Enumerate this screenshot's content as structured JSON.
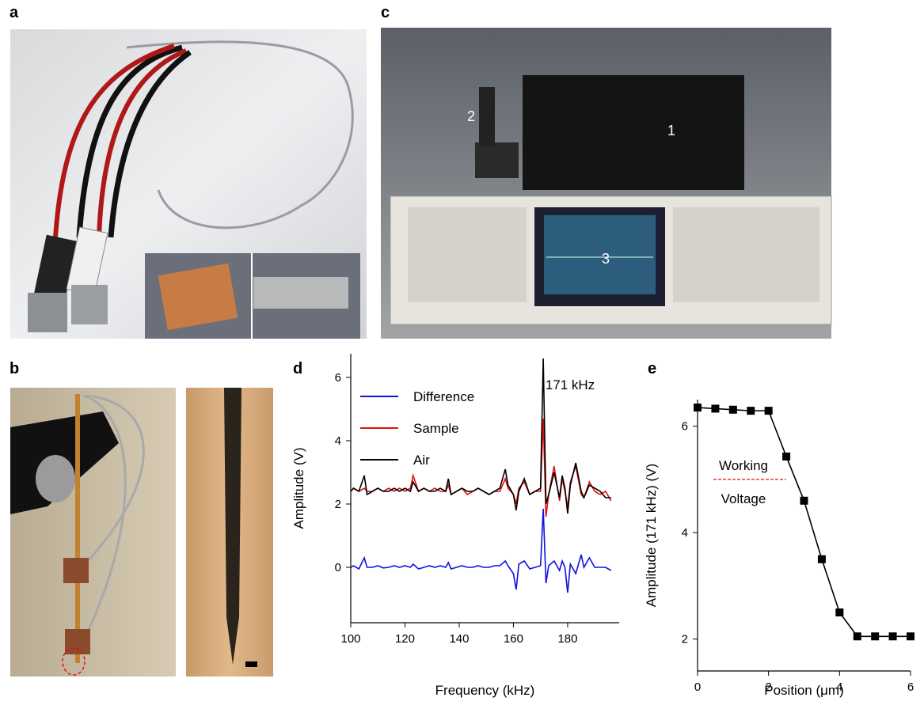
{
  "panel_labels": [
    "a",
    "b",
    "c",
    "d",
    "e"
  ],
  "photo_labels": [
    "1",
    "2",
    "3"
  ],
  "chart_data": [
    {
      "type": "line",
      "xlabel": "Frequency (kHz)",
      "ylabel": "Amplitude (V)",
      "annotation": "171 kHz",
      "legend": "upper left",
      "xlim": [
        100,
        199
      ],
      "xticks": [
        100,
        120,
        140,
        160,
        180
      ],
      "ylim": [
        -1.75,
        6.75
      ],
      "yticks": [
        0,
        2,
        4,
        6
      ],
      "x": [
        100,
        101,
        103,
        105,
        106,
        108,
        110,
        112,
        114,
        116,
        118,
        120,
        122,
        123,
        125,
        127,
        129,
        131,
        133,
        135,
        136,
        137,
        139,
        141,
        143,
        145,
        147,
        149,
        151,
        153,
        155,
        157,
        158,
        160,
        161,
        162,
        164,
        166,
        168,
        170,
        171,
        172,
        173,
        175,
        177,
        178,
        179,
        180,
        181,
        183,
        185,
        186,
        188,
        190,
        192,
        194,
        196
      ],
      "series": [
        {
          "name": "Difference",
          "color": "#1010e0",
          "values": [
            0,
            0.05,
            -0.05,
            0.3,
            0,
            0,
            0.05,
            -0.02,
            0,
            0.05,
            0,
            0.05,
            0,
            0.1,
            -0.05,
            0,
            0.05,
            0,
            0.05,
            0,
            0.15,
            -0.05,
            0,
            0.05,
            0,
            0,
            0.05,
            0,
            0,
            0.05,
            0.05,
            0.2,
            0.05,
            -0.2,
            -0.7,
            0.1,
            0.2,
            -0.05,
            0,
            0.05,
            1.85,
            -0.5,
            0.05,
            0.2,
            -0.1,
            0.2,
            0,
            -0.8,
            0.1,
            -0.2,
            0.4,
            0,
            0.3,
            0,
            0,
            0,
            -0.1
          ]
        },
        {
          "name": "Sample",
          "color": "#e01010",
          "values": [
            2.4,
            2.5,
            2.4,
            2.5,
            2.4,
            2.4,
            2.5,
            2.4,
            2.5,
            2.4,
            2.5,
            2.4,
            2.5,
            2.9,
            2.4,
            2.5,
            2.4,
            2.5,
            2.4,
            2.4,
            2.6,
            2.3,
            2.4,
            2.5,
            2.3,
            2.4,
            2.5,
            2.4,
            2.3,
            2.4,
            2.4,
            2.8,
            2.5,
            2.3,
            2.0,
            2.5,
            2.7,
            2.3,
            2.4,
            2.4,
            4.7,
            1.6,
            2.3,
            3.2,
            2.1,
            2.8,
            2.4,
            1.9,
            2.7,
            3.2,
            2.3,
            2.2,
            2.7,
            2.4,
            2.3,
            2.4,
            2.1
          ]
        },
        {
          "name": "Air",
          "color": "#000000",
          "values": [
            2.4,
            2.5,
            2.4,
            2.9,
            2.3,
            2.4,
            2.5,
            2.4,
            2.4,
            2.5,
            2.4,
            2.5,
            2.4,
            2.7,
            2.4,
            2.5,
            2.4,
            2.4,
            2.5,
            2.4,
            2.8,
            2.3,
            2.4,
            2.5,
            2.4,
            2.4,
            2.5,
            2.4,
            2.3,
            2.4,
            2.5,
            3.1,
            2.6,
            2.3,
            1.8,
            2.4,
            2.8,
            2.3,
            2.4,
            2.5,
            6.6,
            2.0,
            2.3,
            3.0,
            2.2,
            2.9,
            2.5,
            1.7,
            2.6,
            3.3,
            2.4,
            2.2,
            2.6,
            2.5,
            2.4,
            2.2,
            2.2
          ]
        }
      ]
    },
    {
      "type": "line",
      "markers": true,
      "xlabel": "Position (μm)",
      "ylabel": "Amplitude (171 kHz) (V)",
      "xlim": [
        0,
        6
      ],
      "xticks": [
        0,
        2,
        4,
        6
      ],
      "ylim": [
        1.4,
        6.5
      ],
      "yticks": [
        2,
        4,
        6
      ],
      "threshold": 5,
      "threshold_color": "#e01010",
      "threshold_labels": [
        "Working",
        "Voltage"
      ],
      "x": [
        0,
        0.5,
        1,
        1.5,
        2,
        2.5,
        3,
        3.5,
        4,
        4.5,
        5,
        5.5,
        6
      ],
      "series": [
        {
          "color": "#000000",
          "values": [
            6.35,
            6.33,
            6.31,
            6.29,
            6.29,
            5.43,
            4.6,
            3.5,
            2.5,
            2.05,
            2.05,
            2.05,
            2.05
          ]
        }
      ]
    }
  ]
}
